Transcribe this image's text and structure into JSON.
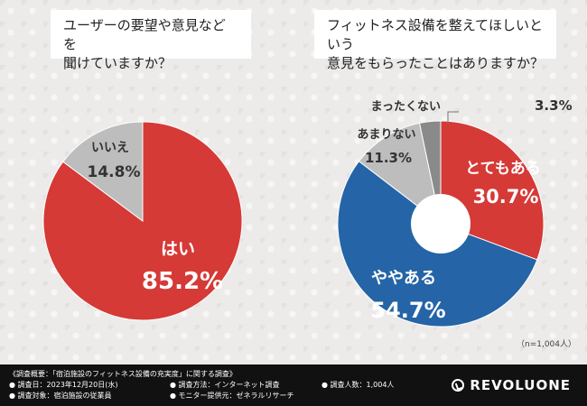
{
  "chart_data": [
    {
      "type": "pie",
      "title_lines": [
        "ユーザーの要望や意見などを",
        "聞けていますか？"
      ],
      "slices": [
        {
          "label": "はい",
          "value": 85.2,
          "value_text": "85.2%",
          "color": "#d53a36"
        },
        {
          "label": "いいえ",
          "value": 14.8,
          "value_text": "14.8%",
          "color": "#bdbdbd"
        }
      ]
    },
    {
      "type": "donut",
      "title_lines": [
        "フィットネス設備を整えてほしいという",
        "意見をもらったことはありますか？"
      ],
      "slices": [
        {
          "label": "とてもある",
          "value": 30.7,
          "value_text": "30.7%",
          "color": "#d53a36"
        },
        {
          "label": "ややある",
          "value": 54.7,
          "value_text": "54.7%",
          "color": "#2564a6"
        },
        {
          "label": "あまりない",
          "value": 11.3,
          "value_text": "11.3%",
          "color": "#bdbdbd"
        },
        {
          "label": "まったくない",
          "value": 3.3,
          "value_text": "3.3%",
          "color": "#8a8a8a"
        }
      ]
    }
  ],
  "sample_note": "（n=1,004人）",
  "footer": {
    "line1": "《調査概要：「宿泊施設のフィットネス設備の充実度」に関する調査》",
    "line2a": "● 調査日：2023年12月20日(水)",
    "line2b": "● 調査方法：インターネット調査",
    "line2c": "● 調査人数：1,004人",
    "line3a": "● 調査対象：宿泊施設の従業員",
    "line3b": "● モニター提供元：ゼネラルリサーチ",
    "brand": "REVOLUONE"
  }
}
